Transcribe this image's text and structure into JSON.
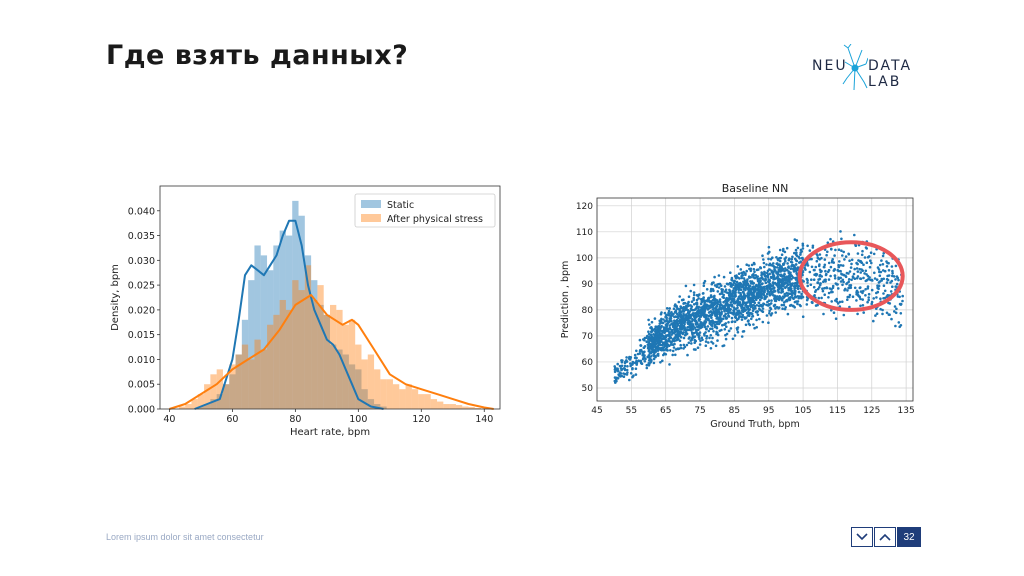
{
  "slide": {
    "title": "Где взять данных?",
    "footer": "Lorem ipsum dolor sit amet consectetur",
    "page_number": "32",
    "logo": {
      "left": "NEU",
      "right": "DATA LAB"
    }
  },
  "colors": {
    "static": "#1f77b4",
    "stress": "#ff7f0e",
    "circle": "#e8575a",
    "nav": "#1f3d7a"
  },
  "icons": [
    "chevron-down-icon",
    "chevron-up-icon",
    "neuron-logo-icon"
  ],
  "chart_data": [
    {
      "type": "histogram",
      "title": "",
      "xlabel": "Heart rate, bpm",
      "ylabel": "Density, bpm",
      "xlim": [
        37,
        145
      ],
      "ylim": [
        0,
        0.045
      ],
      "xticks": [
        "40",
        "60",
        "80",
        "100",
        "120",
        "140"
      ],
      "yticks": [
        "0.000",
        "0.005",
        "0.010",
        "0.015",
        "0.020",
        "0.025",
        "0.030",
        "0.035",
        "0.040"
      ],
      "legend_position": "top-right",
      "series": [
        {
          "name": "Static",
          "bins_x": [
            50,
            52,
            54,
            56,
            58,
            60,
            62,
            64,
            66,
            68,
            70,
            72,
            74,
            76,
            78,
            80,
            82,
            84,
            86,
            88,
            90,
            92,
            94,
            96,
            98,
            100,
            102,
            104,
            106,
            108
          ],
          "bins_y": [
            0.0005,
            0.001,
            0.002,
            0.003,
            0.005,
            0.007,
            0.011,
            0.018,
            0.026,
            0.033,
            0.031,
            0.028,
            0.033,
            0.036,
            0.035,
            0.042,
            0.039,
            0.031,
            0.026,
            0.021,
            0.019,
            0.013,
            0.012,
            0.011,
            0.009,
            0.008,
            0.004,
            0.002,
            0.001,
            0.0005
          ],
          "kde_x": [
            48,
            52,
            56,
            60,
            62,
            64,
            66,
            68,
            70,
            72,
            74,
            76,
            78,
            80,
            82,
            84,
            86,
            88,
            90,
            92,
            94,
            96,
            98,
            100,
            104,
            108
          ],
          "kde_y": [
            0.0,
            0.001,
            0.002,
            0.01,
            0.018,
            0.027,
            0.029,
            0.028,
            0.027,
            0.029,
            0.031,
            0.035,
            0.038,
            0.038,
            0.033,
            0.025,
            0.02,
            0.017,
            0.014,
            0.013,
            0.011,
            0.008,
            0.005,
            0.002,
            0.0005,
            0.0
          ]
        },
        {
          "name": "After physical stress",
          "bins_x": [
            44,
            46,
            48,
            50,
            52,
            54,
            56,
            58,
            60,
            62,
            64,
            66,
            68,
            70,
            72,
            74,
            76,
            78,
            80,
            82,
            84,
            86,
            88,
            90,
            92,
            94,
            96,
            98,
            100,
            102,
            104,
            106,
            108,
            110,
            112,
            114,
            116,
            118,
            120,
            122,
            124,
            126,
            128,
            130,
            132,
            134,
            136,
            138
          ],
          "bins_y": [
            0.0005,
            0.001,
            0.002,
            0.003,
            0.005,
            0.007,
            0.008,
            0.005,
            0.009,
            0.011,
            0.013,
            0.01,
            0.014,
            0.012,
            0.017,
            0.019,
            0.022,
            0.02,
            0.026,
            0.024,
            0.029,
            0.022,
            0.025,
            0.019,
            0.021,
            0.02,
            0.017,
            0.018,
            0.013,
            0.01,
            0.011,
            0.008,
            0.006,
            0.006,
            0.005,
            0.004,
            0.005,
            0.004,
            0.003,
            0.003,
            0.002,
            0.0015,
            0.001,
            0.001,
            0.0008,
            0.0005,
            0.0004,
            0.0002
          ],
          "kde_x": [
            40,
            45,
            50,
            55,
            60,
            65,
            70,
            75,
            80,
            85,
            90,
            95,
            98,
            100,
            105,
            110,
            115,
            120,
            125,
            130,
            135,
            140,
            143
          ],
          "kde_y": [
            0.0,
            0.001,
            0.003,
            0.005,
            0.008,
            0.01,
            0.012,
            0.016,
            0.021,
            0.023,
            0.019,
            0.017,
            0.018,
            0.017,
            0.012,
            0.007,
            0.005,
            0.004,
            0.003,
            0.002,
            0.001,
            0.0003,
            0.0
          ]
        }
      ]
    },
    {
      "type": "scatter",
      "title": "Baseline NN",
      "xlabel": "Ground Truth, bpm",
      "ylabel": "Prediction , bpm",
      "xlim": [
        45,
        137
      ],
      "ylim": [
        45,
        123
      ],
      "xticks": [
        "45",
        "55",
        "65",
        "75",
        "85",
        "95",
        "105",
        "115",
        "125",
        "135"
      ],
      "yticks": [
        "50",
        "60",
        "70",
        "80",
        "90",
        "100",
        "110",
        "120"
      ],
      "grid": true,
      "annotation": {
        "type": "circle",
        "center": [
          119,
          93
        ],
        "radius_x": 15,
        "radius_y": 13
      },
      "cloud": {
        "x_range": [
          50,
          134
        ],
        "trend": [
          [
            50,
            54
          ],
          [
            55,
            60
          ],
          [
            60,
            66
          ],
          [
            65,
            71
          ],
          [
            70,
            75
          ],
          [
            75,
            78
          ],
          [
            80,
            80
          ],
          [
            85,
            83
          ],
          [
            90,
            86
          ],
          [
            95,
            89
          ],
          [
            100,
            91
          ],
          [
            105,
            93
          ],
          [
            110,
            93
          ],
          [
            115,
            93
          ],
          [
            120,
            93
          ],
          [
            125,
            92
          ],
          [
            130,
            88
          ],
          [
            134,
            85
          ]
        ],
        "spread": [
          [
            50,
            3
          ],
          [
            60,
            5
          ],
          [
            70,
            7
          ],
          [
            80,
            8
          ],
          [
            90,
            8
          ],
          [
            100,
            8
          ],
          [
            110,
            9
          ],
          [
            120,
            10
          ],
          [
            130,
            10
          ]
        ]
      }
    }
  ]
}
